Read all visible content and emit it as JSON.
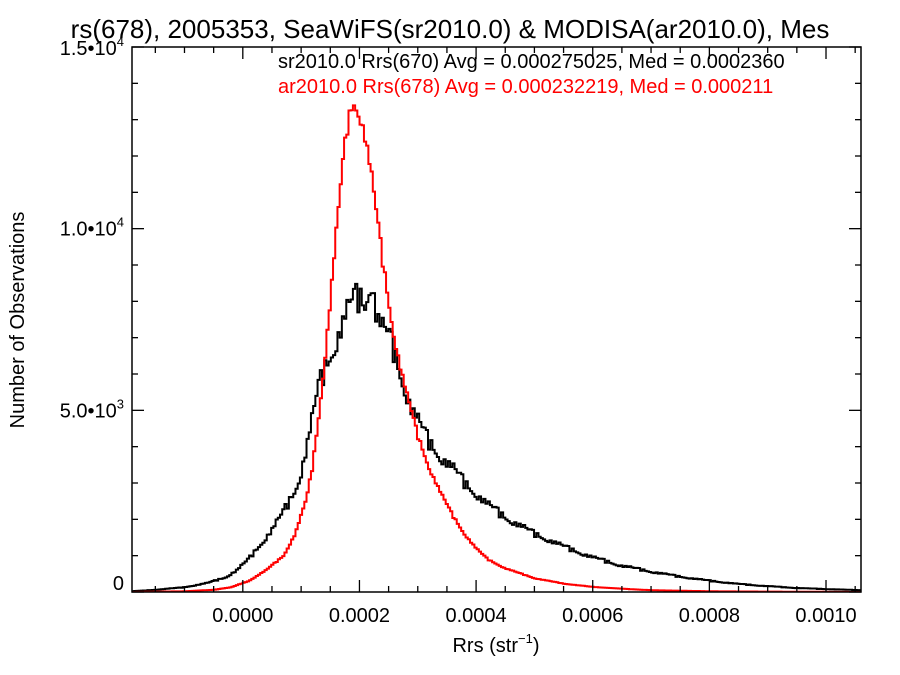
{
  "chart_data": {
    "type": "line",
    "title": "rs(678), 2005353, SeaWiFS(sr2010.0) & MODISA(ar2010.0), Mes",
    "xlabel": "Rrs (str",
    "xlabel_sup": "−1",
    "xlabel_close": ")",
    "ylabel": "Number of Observations",
    "xlim": [
      -0.00019,
      0.00106
    ],
    "ylim": [
      0,
      15000
    ],
    "xticks": [
      0.0,
      0.0002,
      0.0004,
      0.0006,
      0.0008,
      0.001
    ],
    "xtick_labels": [
      "0.0000",
      "0.0002",
      "0.0004",
      "0.0006",
      "0.0008",
      "0.0010"
    ],
    "yticks": [
      0,
      5000,
      10000,
      15000
    ],
    "ytick_labels": [
      {
        "base": "0",
        "exp": ""
      },
      {
        "base": "5.0•10",
        "exp": "3"
      },
      {
        "base": "1.0•10",
        "exp": "4"
      },
      {
        "base": "1.5•10",
        "exp": "4"
      }
    ],
    "grid": false,
    "legend_position": "top-right",
    "series": [
      {
        "name": "sr2010.0 Rrs(670) Avg = 0.000275025, Med = 0.0002360",
        "color": "#000000",
        "points": [
          [
            -0.00019,
            20
          ],
          [
            -0.00015,
            60
          ],
          [
            -0.0001,
            130
          ],
          [
            -6e-05,
            250
          ],
          [
            -3e-05,
            400
          ],
          [
            -1e-05,
            600
          ],
          [
            1e-05,
            900
          ],
          [
            3e-05,
            1300
          ],
          [
            5e-05,
            1700
          ],
          [
            7e-05,
            2200
          ],
          [
            9e-05,
            2800
          ],
          [
            0.0001,
            3300
          ],
          [
            0.00011,
            4000
          ],
          [
            0.00012,
            4800
          ],
          [
            0.00013,
            5600
          ],
          [
            0.00014,
            6100
          ],
          [
            0.00015,
            6500
          ],
          [
            0.00016,
            6900
          ],
          [
            0.00017,
            7300
          ],
          [
            0.00018,
            7700
          ],
          [
            0.00019,
            8000
          ],
          [
            0.0002,
            8100
          ],
          [
            0.00021,
            7900
          ],
          [
            0.00022,
            8700
          ],
          [
            0.00023,
            7500
          ],
          [
            0.00024,
            7200
          ],
          [
            0.00025,
            7000
          ],
          [
            0.00026,
            6600
          ],
          [
            0.00027,
            6000
          ],
          [
            0.00028,
            5500
          ],
          [
            0.00029,
            5000
          ],
          [
            0.0003,
            4700
          ],
          [
            0.00032,
            4100
          ],
          [
            0.00034,
            3700
          ],
          [
            0.00036,
            3400
          ],
          [
            0.00038,
            3000
          ],
          [
            0.0004,
            2700
          ],
          [
            0.00042,
            2400
          ],
          [
            0.00045,
            2050
          ],
          [
            0.0005,
            1600
          ],
          [
            0.00055,
            1250
          ],
          [
            0.0006,
            950
          ],
          [
            0.00065,
            720
          ],
          [
            0.0007,
            560
          ],
          [
            0.00075,
            420
          ],
          [
            0.0008,
            310
          ],
          [
            0.00085,
            220
          ],
          [
            0.0009,
            160
          ],
          [
            0.00095,
            110
          ],
          [
            0.001,
            80
          ],
          [
            0.00106,
            50
          ]
        ]
      },
      {
        "name": "ar2010.0 Rrs(678) Avg = 0.000232219, Med = 0.000211",
        "color": "#ff0000",
        "points": [
          [
            -0.00019,
            0
          ],
          [
            -0.0001,
            20
          ],
          [
            -5e-05,
            60
          ],
          [
            -2e-05,
            130
          ],
          [
            1e-05,
            300
          ],
          [
            4e-05,
            600
          ],
          [
            7e-05,
            1000
          ],
          [
            9e-05,
            1600
          ],
          [
            0.00011,
            2600
          ],
          [
            0.00012,
            3500
          ],
          [
            0.00013,
            4800
          ],
          [
            0.00014,
            6300
          ],
          [
            0.00015,
            8000
          ],
          [
            0.00016,
            9800
          ],
          [
            0.00017,
            11500
          ],
          [
            0.00018,
            12900
          ],
          [
            0.00019,
            13500
          ],
          [
            0.0002,
            13200
          ],
          [
            0.00021,
            12500
          ],
          [
            0.00022,
            11500
          ],
          [
            0.00023,
            10300
          ],
          [
            0.00024,
            9100
          ],
          [
            0.00025,
            8000
          ],
          [
            0.00026,
            7000
          ],
          [
            0.00027,
            6200
          ],
          [
            0.00028,
            5500
          ],
          [
            0.00029,
            4900
          ],
          [
            0.0003,
            4300
          ],
          [
            0.00032,
            3400
          ],
          [
            0.00034,
            2700
          ],
          [
            0.00036,
            2100
          ],
          [
            0.00038,
            1600
          ],
          [
            0.0004,
            1200
          ],
          [
            0.00042,
            900
          ],
          [
            0.00045,
            650
          ],
          [
            0.0005,
            380
          ],
          [
            0.00055,
            230
          ],
          [
            0.0006,
            140
          ],
          [
            0.00065,
            90
          ],
          [
            0.0007,
            50
          ],
          [
            0.0008,
            20
          ],
          [
            0.0009,
            10
          ],
          [
            0.001,
            5
          ],
          [
            0.00106,
            0
          ]
        ]
      }
    ]
  }
}
